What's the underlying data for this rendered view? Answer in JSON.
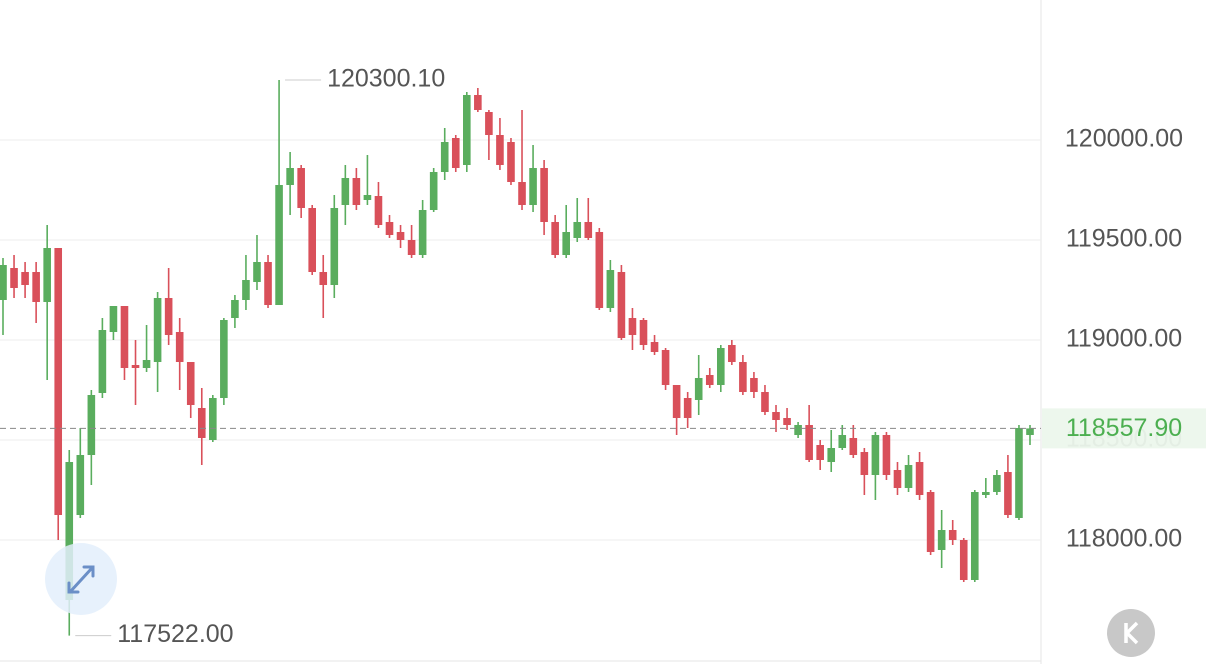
{
  "chart_data": {
    "type": "candlestick",
    "ylim": [
      117380,
      120700
    ],
    "yticks": [
      {
        "value": 118000,
        "label": "118000.00"
      },
      {
        "value": 118500,
        "label": "118500.00"
      },
      {
        "value": 119000,
        "label": "119000.00"
      },
      {
        "value": 119500,
        "label": "119500.00"
      },
      {
        "value": 120000,
        "label": "120000.00"
      }
    ],
    "grid": true,
    "up_color": "#5aad5e",
    "down_color": "#d9505a",
    "last_price": {
      "value": 118557.9,
      "label": "118557.90"
    },
    "max_label": "120300.10",
    "min_label": "117522.00",
    "open": [
      119200,
      119360,
      119340,
      119340,
      119190,
      119460,
      117700,
      118125,
      118425,
      118735,
      119040,
      119170,
      118875,
      118860,
      118890,
      119210,
      119040,
      118890,
      118660,
      118500,
      118710,
      119110,
      119200,
      119290,
      119390,
      119175,
      119775,
      119860,
      119660,
      119340,
      119275,
      119675,
      119810,
      119700,
      119720,
      119590,
      119540,
      119500,
      119425,
      119650,
      119840,
      120010,
      119875,
      120225,
      120140,
      120025,
      119990,
      119790,
      119675,
      119860,
      119590,
      119425,
      119510,
      119590,
      119540,
      119160,
      119340,
      119110,
      119100,
      118990,
      118950,
      118775,
      118710,
      118700,
      118825,
      118775,
      118975,
      118890,
      118810,
      118740,
      118640,
      118610,
      118525,
      118575,
      118475,
      118390,
      118460,
      118510,
      118440,
      118325,
      118525,
      118350,
      118260,
      118390,
      118240,
      117950,
      118050,
      118000,
      117800,
      118225,
      118240,
      118340,
      118110,
      118525
    ],
    "high": [
      119410,
      119425,
      119390,
      119390,
      119575,
      119460,
      118450,
      118560,
      118750,
      119110,
      119170,
      119170,
      119000,
      119075,
      119240,
      119360,
      119110,
      118890,
      118760,
      118725,
      119110,
      119225,
      119425,
      119525,
      119425,
      120300.1,
      119940,
      119875,
      119675,
      119425,
      119725,
      119875,
      119860,
      119925,
      119790,
      119625,
      119575,
      119575,
      119700,
      119860,
      120060,
      120025,
      120240,
      120260,
      120150,
      120110,
      120010,
      120150,
      119975,
      119900,
      119625,
      119675,
      119710,
      119710,
      119560,
      119400,
      119375,
      119160,
      119110,
      119025,
      118960,
      118775,
      118740,
      118925,
      118860,
      118975,
      119000,
      118925,
      118840,
      118775,
      118675,
      118660,
      118590,
      118675,
      118500,
      118550,
      118575,
      118575,
      118460,
      118540,
      118540,
      118390,
      118425,
      118440,
      118250,
      118150,
      118100,
      118010,
      118250,
      118310,
      118350,
      118425,
      118575,
      118575
    ],
    "low": [
      119025,
      119210,
      119210,
      119085,
      118800,
      118000,
      117522,
      118110,
      118275,
      118710,
      119000,
      118800,
      118675,
      118840,
      118740,
      118975,
      118750,
      118610,
      118375,
      118490,
      118675,
      119060,
      119150,
      119250,
      119160,
      119175,
      119625,
      119610,
      119325,
      119110,
      119210,
      119575,
      119650,
      119675,
      119560,
      119510,
      119460,
      119410,
      119410,
      119640,
      119800,
      119840,
      119840,
      120140,
      119900,
      119850,
      119775,
      119650,
      119640,
      119525,
      119410,
      119410,
      119490,
      119500,
      119150,
      119140,
      119000,
      118950,
      118950,
      118925,
      118750,
      118525,
      118560,
      118625,
      118760,
      118740,
      118875,
      118725,
      118710,
      118625,
      118540,
      118550,
      118510,
      118390,
      118350,
      118340,
      118450,
      118410,
      118225,
      118200,
      118300,
      118225,
      118240,
      118200,
      117925,
      117860,
      117975,
      117790,
      117790,
      118210,
      118225,
      118110,
      118100,
      118475
    ],
    "close": [
      119375,
      119260,
      119275,
      119190,
      119460,
      118125,
      118390,
      118425,
      118725,
      119050,
      119170,
      118860,
      118860,
      118900,
      119210,
      119025,
      118890,
      118675,
      118510,
      118710,
      119100,
      119200,
      119300,
      119390,
      119175,
      119775,
      119860,
      119660,
      119340,
      119275,
      119660,
      119810,
      119675,
      119725,
      119575,
      119525,
      119500,
      119425,
      119650,
      119840,
      119990,
      119860,
      120225,
      120150,
      120025,
      119875,
      119790,
      119675,
      119860,
      119590,
      119425,
      119540,
      119590,
      119510,
      119160,
      119350,
      119010,
      119025,
      118975,
      118940,
      118775,
      118610,
      118610,
      118810,
      118775,
      118960,
      118890,
      118740,
      118740,
      118640,
      118600,
      118575,
      118575,
      118400,
      118400,
      118460,
      118525,
      118425,
      118325,
      118525,
      118325,
      118260,
      118375,
      118225,
      117940,
      118050,
      118000,
      117800,
      118240,
      118240,
      118325,
      118125,
      118560,
      118557.9
    ]
  }
}
